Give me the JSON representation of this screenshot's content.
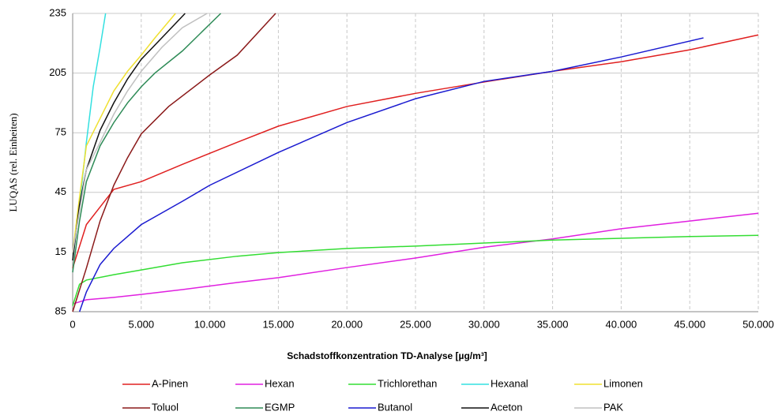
{
  "chart_data": {
    "type": "line",
    "x_label": "Schadstoffkonzentration TD-Analyse [µg/m³]",
    "y_label": "LUQAS (rel. Einheiten)",
    "xlim": [
      0,
      50000
    ],
    "xticks": [
      0,
      {
        "value": 5000,
        "label": "5.000"
      },
      {
        "value": 10000,
        "label": "10.000"
      },
      {
        "value": 15000,
        "label": "15.000"
      },
      {
        "value": 20000,
        "label": "20.000"
      },
      {
        "value": 25000,
        "label": "25.000"
      },
      {
        "value": 30000,
        "label": "30.000"
      },
      {
        "value": 35000,
        "label": "35.000"
      },
      {
        "value": 40000,
        "label": "40.000"
      },
      {
        "value": 45000,
        "label": "45.000"
      },
      {
        "value": 50000,
        "label": "50.000"
      }
    ],
    "ylim": [
      0,
      5
    ],
    "yticks": [
      {
        "value": 0,
        "label": "85"
      },
      {
        "value": 1,
        "label": "15"
      },
      {
        "value": 2,
        "label": "45"
      },
      {
        "value": 3,
        "label": "75"
      },
      {
        "value": 4,
        "label": "205"
      },
      {
        "value": 5,
        "label": "235"
      }
    ],
    "grid": true,
    "series": [
      {
        "name": "A-Pinen",
        "color": "#e02020",
        "x": [
          0,
          1000,
          3000,
          5000,
          8000,
          12000,
          15000,
          20000,
          25000,
          30000,
          35000,
          40000,
          45000,
          50000
        ],
        "values": [
          0.73,
          1.46,
          2.05,
          2.18,
          2.47,
          2.84,
          3.11,
          3.44,
          3.66,
          3.85,
          4.03,
          4.19,
          4.39,
          4.64
        ]
      },
      {
        "name": "Hexan",
        "color": "#e020e0",
        "x": [
          0,
          1000,
          3000,
          5000,
          8000,
          12000,
          15000,
          20000,
          25000,
          30000,
          35000,
          40000,
          45000,
          50000
        ],
        "values": [
          0.13,
          0.2,
          0.24,
          0.29,
          0.37,
          0.49,
          0.57,
          0.74,
          0.9,
          1.08,
          1.22,
          1.39,
          1.52,
          1.65
        ]
      },
      {
        "name": "Trichlorethan",
        "color": "#33dd33",
        "x": [
          0,
          500,
          1000,
          3000,
          5000,
          8000,
          12000,
          15000,
          20000,
          25000,
          30000,
          35000,
          40000,
          45000,
          50000
        ],
        "values": [
          0.1,
          0.46,
          0.53,
          0.62,
          0.7,
          0.82,
          0.93,
          0.99,
          1.06,
          1.1,
          1.15,
          1.2,
          1.23,
          1.26,
          1.28
        ]
      },
      {
        "name": "Hexanal",
        "color": "#33e0e0",
        "x": [
          0,
          500,
          1000,
          1500,
          2000,
          2400
        ],
        "values": [
          0.86,
          1.79,
          2.84,
          3.77,
          4.43,
          5
        ]
      },
      {
        "name": "Limonen",
        "color": "#f0e030",
        "x": [
          0,
          500,
          1000,
          2000,
          3000,
          4000,
          5000,
          6000,
          7500
        ],
        "values": [
          0.99,
          1.92,
          2.78,
          3.24,
          3.7,
          4.03,
          4.3,
          4.59,
          5
        ]
      },
      {
        "name": "Toluol",
        "color": "#8b1a1a",
        "x": [
          0,
          1000,
          2000,
          3000,
          4000,
          5000,
          7000,
          10000,
          12000,
          14800
        ],
        "values": [
          0,
          0.73,
          1.52,
          2.12,
          2.58,
          2.98,
          3.44,
          3.97,
          4.3,
          5
        ]
      },
      {
        "name": "EGMP",
        "color": "#2e8b57",
        "x": [
          0,
          500,
          1000,
          2000,
          3000,
          4000,
          5000,
          6000,
          8000,
          10800
        ],
        "values": [
          0.66,
          1.52,
          2.18,
          2.78,
          3.17,
          3.5,
          3.77,
          4.0,
          4.37,
          5
        ]
      },
      {
        "name": "Butanol",
        "color": "#1a1ad0",
        "x": [
          500,
          1000,
          2000,
          3000,
          5000,
          8000,
          10000,
          15000,
          20000,
          25000,
          30000,
          35000,
          40000,
          46000
        ],
        "values": [
          0,
          0.33,
          0.79,
          1.06,
          1.46,
          1.85,
          2.12,
          2.67,
          3.17,
          3.57,
          3.86,
          4.03,
          4.27,
          4.59
        ]
      },
      {
        "name": "Aceton",
        "color": "#111111",
        "x": [
          0,
          500,
          1000,
          2000,
          3000,
          4000,
          5000,
          6500,
          8200
        ],
        "values": [
          0.86,
          1.79,
          2.38,
          3.04,
          3.5,
          3.9,
          4.23,
          4.59,
          5
        ]
      },
      {
        "name": "PAK",
        "color": "#c0c0c0",
        "x": [
          0,
          1000,
          2000,
          3000,
          4000,
          5000,
          6500,
          8000,
          9800
        ],
        "values": [
          0.99,
          2.38,
          2.84,
          3.31,
          3.7,
          4.03,
          4.43,
          4.76,
          5
        ]
      }
    ]
  }
}
